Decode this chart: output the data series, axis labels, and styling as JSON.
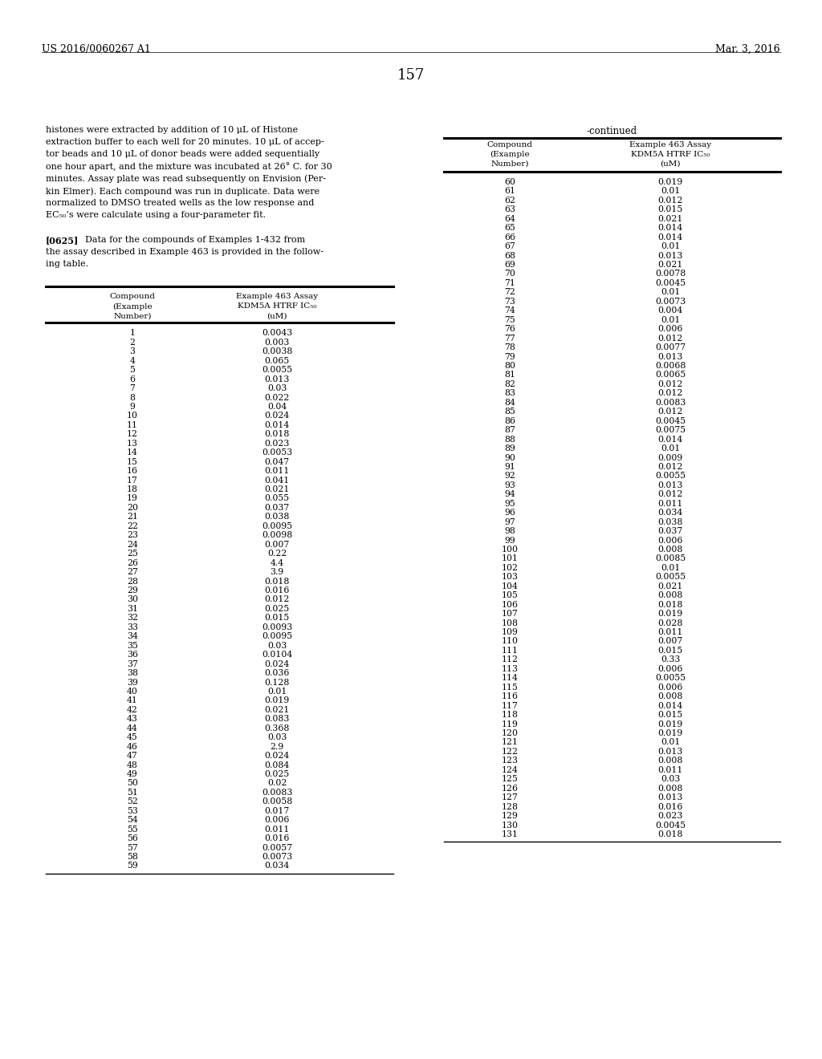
{
  "header_left": "US 2016/0060267 A1",
  "header_right": "Mar. 3, 2016",
  "page_number": "157",
  "body_text_left": [
    "histones were extracted by addition of 10 μL of Histone",
    "extraction buffer to each well for 20 minutes. 10 μL of accep-",
    "tor beads and 10 μL of donor beads were added sequentially",
    "one hour apart, and the mixture was incubated at 26° C. for 30",
    "minutes. Assay plate was read subsequently on Envision (Per-",
    "kin Elmer). Each compound was run in duplicate. Data were",
    "normalized to DMSO treated wells as the low response and",
    "EC₅₀’s were calculate using a four-parameter fit.",
    "",
    "[0625]  Data for the compounds of Examples 1-432 from",
    "the assay described in Example 463 is provided in the follow-",
    "ing table."
  ],
  "continued_label": "-continued",
  "table_col1_header": [
    "Compound",
    "(Example",
    "Number)"
  ],
  "table_col2_header": [
    "Example 463 Assay",
    "KDM5A HTRF IC₅₀",
    "(uM)"
  ],
  "left_table_data": [
    [
      "1",
      "0.0043"
    ],
    [
      "2",
      "0.003"
    ],
    [
      "3",
      "0.0038"
    ],
    [
      "4",
      "0.065"
    ],
    [
      "5",
      "0.0055"
    ],
    [
      "6",
      "0.013"
    ],
    [
      "7",
      "0.03"
    ],
    [
      "8",
      "0.022"
    ],
    [
      "9",
      "0.04"
    ],
    [
      "10",
      "0.024"
    ],
    [
      "11",
      "0.014"
    ],
    [
      "12",
      "0.018"
    ],
    [
      "13",
      "0.023"
    ],
    [
      "14",
      "0.0053"
    ],
    [
      "15",
      "0.047"
    ],
    [
      "16",
      "0.011"
    ],
    [
      "17",
      "0.041"
    ],
    [
      "18",
      "0.021"
    ],
    [
      "19",
      "0.055"
    ],
    [
      "20",
      "0.037"
    ],
    [
      "21",
      "0.038"
    ],
    [
      "22",
      "0.0095"
    ],
    [
      "23",
      "0.0098"
    ],
    [
      "24",
      "0.007"
    ],
    [
      "25",
      "0.22"
    ],
    [
      "26",
      "4.4"
    ],
    [
      "27",
      "3.9"
    ],
    [
      "28",
      "0.018"
    ],
    [
      "29",
      "0.016"
    ],
    [
      "30",
      "0.012"
    ],
    [
      "31",
      "0.025"
    ],
    [
      "32",
      "0.015"
    ],
    [
      "33",
      "0.0093"
    ],
    [
      "34",
      "0.0095"
    ],
    [
      "35",
      "0.03"
    ],
    [
      "36",
      "0.0104"
    ],
    [
      "37",
      "0.024"
    ],
    [
      "38",
      "0.036"
    ],
    [
      "39",
      "0.128"
    ],
    [
      "40",
      "0.01"
    ],
    [
      "41",
      "0.019"
    ],
    [
      "42",
      "0.021"
    ],
    [
      "43",
      "0.083"
    ],
    [
      "44",
      "0.368"
    ],
    [
      "45",
      "0.03"
    ],
    [
      "46",
      "2.9"
    ],
    [
      "47",
      "0.024"
    ],
    [
      "48",
      "0.084"
    ],
    [
      "49",
      "0.025"
    ],
    [
      "50",
      "0.02"
    ],
    [
      "51",
      "0.0083"
    ],
    [
      "52",
      "0.0058"
    ],
    [
      "53",
      "0.017"
    ],
    [
      "54",
      "0.006"
    ],
    [
      "55",
      "0.011"
    ],
    [
      "56",
      "0.016"
    ],
    [
      "57",
      "0.0057"
    ],
    [
      "58",
      "0.0073"
    ],
    [
      "59",
      "0.034"
    ]
  ],
  "right_table_data": [
    [
      "60",
      "0.019"
    ],
    [
      "61",
      "0.01"
    ],
    [
      "62",
      "0.012"
    ],
    [
      "63",
      "0.015"
    ],
    [
      "64",
      "0.021"
    ],
    [
      "65",
      "0.014"
    ],
    [
      "66",
      "0.014"
    ],
    [
      "67",
      "0.01"
    ],
    [
      "68",
      "0.013"
    ],
    [
      "69",
      "0.021"
    ],
    [
      "70",
      "0.0078"
    ],
    [
      "71",
      "0.0045"
    ],
    [
      "72",
      "0.01"
    ],
    [
      "73",
      "0.0073"
    ],
    [
      "74",
      "0.004"
    ],
    [
      "75",
      "0.01"
    ],
    [
      "76",
      "0.006"
    ],
    [
      "77",
      "0.012"
    ],
    [
      "78",
      "0.0077"
    ],
    [
      "79",
      "0.013"
    ],
    [
      "80",
      "0.0068"
    ],
    [
      "81",
      "0.0065"
    ],
    [
      "82",
      "0.012"
    ],
    [
      "83",
      "0.012"
    ],
    [
      "84",
      "0.0083"
    ],
    [
      "85",
      "0.012"
    ],
    [
      "86",
      "0.0045"
    ],
    [
      "87",
      "0.0075"
    ],
    [
      "88",
      "0.014"
    ],
    [
      "89",
      "0.01"
    ],
    [
      "90",
      "0.009"
    ],
    [
      "91",
      "0.012"
    ],
    [
      "92",
      "0.0055"
    ],
    [
      "93",
      "0.013"
    ],
    [
      "94",
      "0.012"
    ],
    [
      "95",
      "0.011"
    ],
    [
      "96",
      "0.034"
    ],
    [
      "97",
      "0.038"
    ],
    [
      "98",
      "0.037"
    ],
    [
      "99",
      "0.006"
    ],
    [
      "100",
      "0.008"
    ],
    [
      "101",
      "0.0085"
    ],
    [
      "102",
      "0.01"
    ],
    [
      "103",
      "0.0055"
    ],
    [
      "104",
      "0.021"
    ],
    [
      "105",
      "0.008"
    ],
    [
      "106",
      "0.018"
    ],
    [
      "107",
      "0.019"
    ],
    [
      "108",
      "0.028"
    ],
    [
      "109",
      "0.011"
    ],
    [
      "110",
      "0.007"
    ],
    [
      "111",
      "0.015"
    ],
    [
      "112",
      "0.33"
    ],
    [
      "113",
      "0.006"
    ],
    [
      "114",
      "0.0055"
    ],
    [
      "115",
      "0.006"
    ],
    [
      "116",
      "0.008"
    ],
    [
      "117",
      "0.014"
    ],
    [
      "118",
      "0.015"
    ],
    [
      "119",
      "0.019"
    ],
    [
      "120",
      "0.019"
    ],
    [
      "121",
      "0.01"
    ],
    [
      "122",
      "0.013"
    ],
    [
      "123",
      "0.008"
    ],
    [
      "124",
      "0.011"
    ],
    [
      "125",
      "0.03"
    ],
    [
      "126",
      "0.008"
    ],
    [
      "127",
      "0.013"
    ],
    [
      "128",
      "0.016"
    ],
    [
      "129",
      "0.023"
    ],
    [
      "130",
      "0.0045"
    ],
    [
      "131",
      "0.018"
    ]
  ],
  "bg_color": "#ffffff",
  "text_color": "#000000"
}
